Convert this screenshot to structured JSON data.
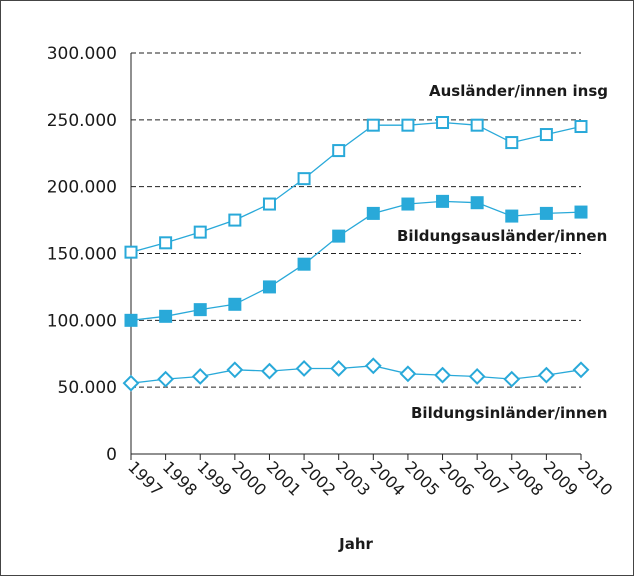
{
  "chart_data": {
    "type": "line",
    "xlabel": "Jahr",
    "ylabel": "",
    "ylim": [
      0,
      300000
    ],
    "yticks": [
      0,
      50000,
      100000,
      150000,
      200000,
      250000,
      300000
    ],
    "ytick_labels": [
      "0",
      "50.000",
      "100.000",
      "150.000",
      "200.000",
      "250.000",
      "300.000"
    ],
    "x": [
      "1997",
      "1998",
      "1999",
      "2000",
      "2001",
      "2002",
      "2003",
      "2004",
      "2005",
      "2006",
      "2007",
      "2008",
      "2009",
      "2010"
    ],
    "grid": "horizontal dashed",
    "line_color": "#29a9d9",
    "series": [
      {
        "name": "Ausländer/innen insg",
        "marker": "open-square",
        "values": [
          151000,
          158000,
          166000,
          175000,
          187000,
          206000,
          227000,
          246000,
          246000,
          248000,
          246000,
          233000,
          239000,
          245000
        ]
      },
      {
        "name": "Bildungsausländer/innen",
        "marker": "filled-square",
        "values": [
          100000,
          103000,
          108000,
          112000,
          125000,
          142000,
          163000,
          180000,
          187000,
          189000,
          188000,
          178000,
          180000,
          181000
        ]
      },
      {
        "name": "Bildungsinländer/innen",
        "marker": "open-diamond",
        "values": [
          53000,
          56000,
          58000,
          63000,
          62000,
          64000,
          64000,
          66000,
          60000,
          59000,
          58000,
          56000,
          59000,
          63000
        ]
      }
    ]
  }
}
